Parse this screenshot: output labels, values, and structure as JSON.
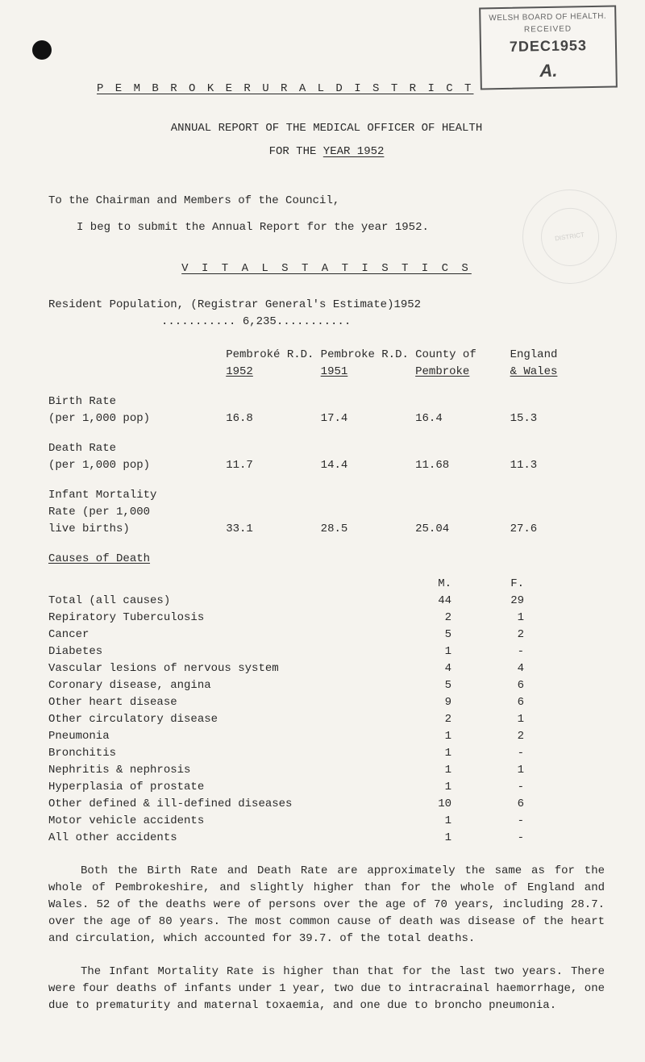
{
  "stamp": {
    "line1": "WELSH BOARD OF HEALTH.",
    "line2": "RECEIVED",
    "line3": "7DEC1953",
    "line4": "A."
  },
  "heading": "P E M B R O K E  R U R A L  D I S T R I C T",
  "subtitle1": "ANNUAL REPORT OF THE MEDICAL OFFICER OF HEALTH",
  "subtitle2_prefix": "FOR THE ",
  "subtitle2_underline": "YEAR 1952",
  "to_line": "To the Chairman and Members of the Council,",
  "beg_line": "I beg to submit the Annual Report for the year 1952.",
  "vitals_heading": "V I T A L  S T A T I S T I C S",
  "residents_line1": "Resident Population, (Registrar General's Estimate)1952",
  "residents_line2": "........... 6,235...........",
  "table": {
    "headers": {
      "c1a": "Pembroké R.D.",
      "c1b": "1952",
      "c2a": "Pembroke R.D.",
      "c2b": "1951",
      "c3a": "County of",
      "c3b": "Pembroke",
      "c4a": "England",
      "c4b": "& Wales"
    },
    "rows": [
      {
        "label1": "Birth Rate",
        "label2": "(per 1,000 pop)",
        "c1": "16.8",
        "c2": "17.4",
        "c3": "16.4",
        "c4": "15.3"
      },
      {
        "label1": "Death Rate",
        "label2": "(per 1,000 pop)",
        "c1": "11.7",
        "c2": "14.4",
        "c3": "11.68",
        "c4": "11.3"
      },
      {
        "label1": "Infant Mortality",
        "label2": "Rate (per 1,000",
        "label3": "live births)",
        "c1": "33.1",
        "c2": "28.5",
        "c3": "25.04",
        "c4": "27.6"
      }
    ]
  },
  "causes_heading": "Causes of Death",
  "causes_cols": {
    "m": "M.",
    "f": "F."
  },
  "causes": [
    {
      "label": "Total (all causes)",
      "m": "44",
      "f": "29"
    },
    {
      "label": "Repiratory Tuberculosis",
      "m": "2",
      "f": "1"
    },
    {
      "label": "Cancer",
      "m": "5",
      "f": "2"
    },
    {
      "label": "Diabetes",
      "m": "1",
      "f": "-"
    },
    {
      "label": "Vascular lesions of nervous system",
      "m": "4",
      "f": "4"
    },
    {
      "label": "Coronary disease, angina",
      "m": "5",
      "f": "6"
    },
    {
      "label": "Other heart disease",
      "m": "9",
      "f": "6"
    },
    {
      "label": "Other circulatory disease",
      "m": "2",
      "f": "1"
    },
    {
      "label": "Pneumonia",
      "m": "1",
      "f": "2"
    },
    {
      "label": "Bronchitis",
      "m": "1",
      "f": "-"
    },
    {
      "label": "Nephritis & nephrosis",
      "m": "1",
      "f": "1"
    },
    {
      "label": "Hyperplasia of prostate",
      "m": "1",
      "f": "-"
    },
    {
      "label": "Other defined & ill-defined diseases",
      "m": "10",
      "f": "6"
    },
    {
      "label": "Motor vehicle accidents",
      "m": "1",
      "f": "-"
    },
    {
      "label": "All other accidents",
      "m": "1",
      "f": "-"
    }
  ],
  "para1": "Both the Birth Rate and Death Rate are approximately the same as for the whole of Pembrokeshire, and slightly higher than for the whole of England and Wales.  52 of the deaths were of persons over the age of 70 years, including 28.7. over the age of 80 years.  The most common cause of death was disease of the heart and circulation, which accounted for 39.7. of the total deaths.",
  "para2": "The Infant Mortality Rate is higher than that for the last two years.  There were four deaths of infants under 1 year, two due to intracrainal haemorrhage, one due to prematurity and maternal toxaemia, and one due to broncho pneumonia.",
  "seal_text": "DISTRICT"
}
